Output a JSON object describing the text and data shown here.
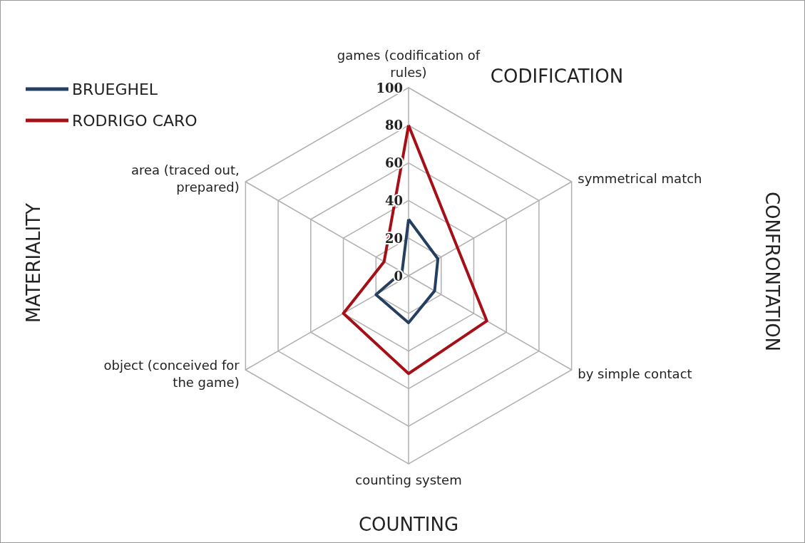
{
  "chart_data": {
    "type": "radar",
    "categories": [
      "games (codification of rules)",
      "symmetrical match",
      "by simple contact",
      "counting system",
      "object (conceived for the game)",
      "area (traced out, prepared)"
    ],
    "series": [
      {
        "name": "BRUEGHEL",
        "color": "#243f60",
        "values": [
          30,
          18,
          16,
          25,
          20,
          4
        ]
      },
      {
        "name": "RODRIGO CARO",
        "color": "#a50f15",
        "values": [
          80,
          30,
          48,
          52,
          40,
          15
        ]
      }
    ],
    "ylim": [
      0,
      100
    ],
    "yticks": [
      0,
      20,
      40,
      60,
      80,
      100
    ],
    "legend": "top left",
    "marker": "none",
    "line_style": "solid",
    "annotations": [
      "CODIFICATION",
      "CONFRONTATION",
      "COUNTING",
      "MATERIALITY"
    ]
  }
}
